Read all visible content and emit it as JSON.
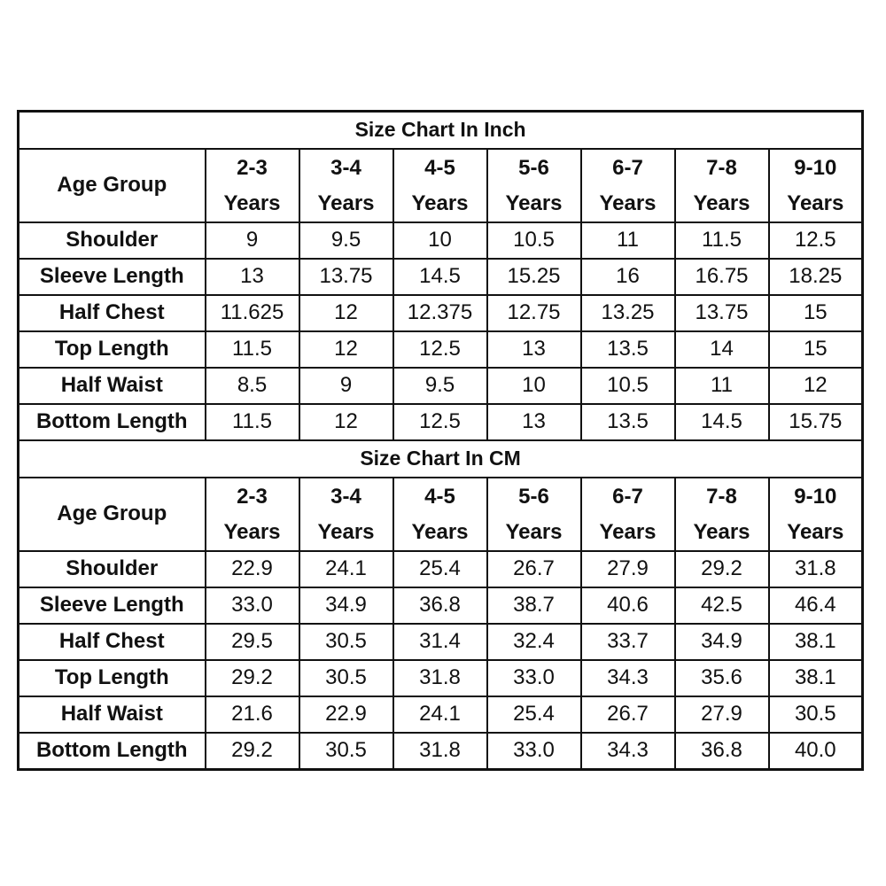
{
  "sections": [
    {
      "title": "Size Chart In Inch",
      "header_label": "Age Group",
      "columns": [
        {
          "top": "2-3",
          "bottom": "Years"
        },
        {
          "top": "3-4",
          "bottom": "Years"
        },
        {
          "top": "4-5",
          "bottom": "Years"
        },
        {
          "top": "5-6",
          "bottom": "Years"
        },
        {
          "top": "6-7",
          "bottom": "Years"
        },
        {
          "top": "7-8",
          "bottom": "Years"
        },
        {
          "top": "9-10",
          "bottom": "Years"
        }
      ],
      "rows": [
        {
          "label": "Shoulder",
          "values": [
            "9",
            "9.5",
            "10",
            "10.5",
            "11",
            "11.5",
            "12.5"
          ]
        },
        {
          "label": "Sleeve Length",
          "values": [
            "13",
            "13.75",
            "14.5",
            "15.25",
            "16",
            "16.75",
            "18.25"
          ]
        },
        {
          "label": "Half Chest",
          "values": [
            "11.625",
            "12",
            "12.375",
            "12.75",
            "13.25",
            "13.75",
            "15"
          ]
        },
        {
          "label": "Top Length",
          "values": [
            "11.5",
            "12",
            "12.5",
            "13",
            "13.5",
            "14",
            "15"
          ]
        },
        {
          "label": "Half Waist",
          "values": [
            "8.5",
            "9",
            "9.5",
            "10",
            "10.5",
            "11",
            "12"
          ]
        },
        {
          "label": "Bottom Length",
          "values": [
            "11.5",
            "12",
            "12.5",
            "13",
            "13.5",
            "14.5",
            "15.75"
          ]
        }
      ]
    },
    {
      "title": "Size Chart In CM",
      "header_label": "Age Group",
      "columns": [
        {
          "top": "2-3",
          "bottom": "Years"
        },
        {
          "top": "3-4",
          "bottom": "Years"
        },
        {
          "top": "4-5",
          "bottom": "Years"
        },
        {
          "top": "5-6",
          "bottom": "Years"
        },
        {
          "top": "6-7",
          "bottom": "Years"
        },
        {
          "top": "7-8",
          "bottom": "Years"
        },
        {
          "top": "9-10",
          "bottom": "Years"
        }
      ],
      "rows": [
        {
          "label": "Shoulder",
          "values": [
            "22.9",
            "24.1",
            "25.4",
            "26.7",
            "27.9",
            "29.2",
            "31.8"
          ]
        },
        {
          "label": "Sleeve Length",
          "values": [
            "33.0",
            "34.9",
            "36.8",
            "38.7",
            "40.6",
            "42.5",
            "46.4"
          ]
        },
        {
          "label": "Half Chest",
          "values": [
            "29.5",
            "30.5",
            "31.4",
            "32.4",
            "33.7",
            "34.9",
            "38.1"
          ]
        },
        {
          "label": "Top Length",
          "values": [
            "29.2",
            "30.5",
            "31.8",
            "33.0",
            "34.3",
            "35.6",
            "38.1"
          ]
        },
        {
          "label": "Half Waist",
          "values": [
            "21.6",
            "22.9",
            "24.1",
            "25.4",
            "26.7",
            "27.9",
            "30.5"
          ]
        },
        {
          "label": "Bottom Length",
          "values": [
            "29.2",
            "30.5",
            "31.8",
            "33.0",
            "34.3",
            "36.8",
            "40.0"
          ]
        }
      ]
    }
  ]
}
